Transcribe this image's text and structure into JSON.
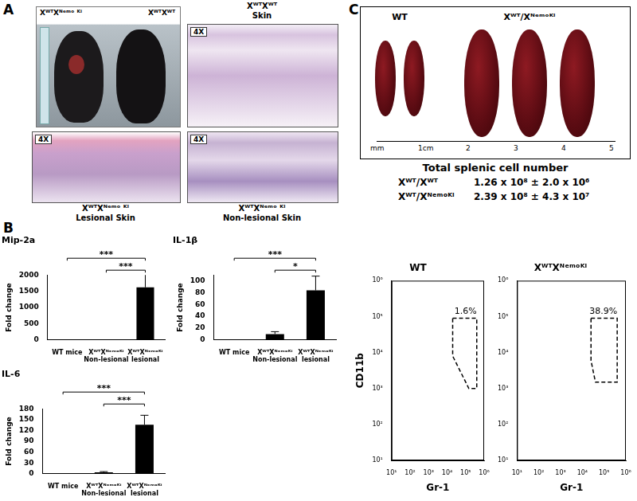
{
  "panel_a": {
    "label": "A",
    "photo_labels": [
      "XᵂᵀXᴺᵉᵐᵒ ᴷⁱ",
      "XᵂᵀXᵂᵀ"
    ],
    "images": [
      {
        "magnification": "4X",
        "caption": [
          "XᵂᵀXᵂᵀ",
          "Skin"
        ]
      },
      {
        "magnification": "4X",
        "caption": [
          "XᵂᵀXᴺᵉᵐᵒ ᴷⁱ",
          "Lesional Skin"
        ]
      },
      {
        "magnification": "4X",
        "caption": [
          "XᵂᵀXᴺᵉᵐᵒ ᴷⁱ",
          "Non-lesional Skin"
        ]
      }
    ]
  },
  "panel_b": {
    "label": "B"
  },
  "panel_c": {
    "label": "C",
    "spleen_groups": [
      {
        "label": "WT",
        "count": 2
      },
      {
        "label": "Xᵂᵀ/Xᴺᵉᵐᵒᴷⁱ",
        "count": 3
      }
    ],
    "ruler_labels": [
      "mm",
      "1cm",
      "2",
      "3",
      "4",
      "5"
    ],
    "table_title": "Total splenic cell number",
    "rows": [
      [
        "Xᵂᵀ/Xᵂᵀ",
        "1.26 x 10⁸ ± 2.0 x 10⁶"
      ],
      [
        "Xᵂᵀ/Xᴺᵉᵐᵒᴷⁱ",
        "2.39 x 10⁸ ± 4.3 x 10⁷"
      ]
    ]
  },
  "chart_data": [
    {
      "type": "bar",
      "title": "Mip-2a",
      "y_label": "Fold change",
      "categories": [
        "WT mice",
        "XᵂᵀXᴺᵉᵐᵒᴷⁱ Non-lesional",
        "XᵂᵀXᴺᵉᵐᵒᴷⁱ lesional"
      ],
      "values": [
        1,
        5,
        1620
      ],
      "errors": [
        0,
        2,
        400
      ],
      "color": "#000000",
      "ylim": [
        0,
        2000
      ],
      "yticks": [
        0,
        500,
        1000,
        1500,
        2000
      ],
      "grid": false,
      "significance": [
        {
          "pair": [
            0,
            2
          ],
          "label": "***"
        },
        {
          "pair": [
            1,
            2
          ],
          "label": "***"
        }
      ]
    },
    {
      "type": "bar",
      "title": "IL-1β",
      "y_label": "Fold change",
      "categories": [
        "WT mice",
        "XᵂᵀXᴺᵉᵐᵒᴷⁱ Non-lesional",
        "XᵂᵀXᴺᵉᵐᵒᴷⁱ lesional"
      ],
      "values": [
        1,
        10,
        84
      ],
      "errors": [
        0,
        4,
        24
      ],
      "color": "#000000",
      "ylim": [
        0,
        110
      ],
      "yticks": [
        0,
        20,
        40,
        60,
        80,
        100
      ],
      "grid": false,
      "significance": [
        {
          "pair": [
            0,
            2
          ],
          "label": "***"
        },
        {
          "pair": [
            1,
            2
          ],
          "label": "*"
        }
      ]
    },
    {
      "type": "bar",
      "title": "IL-6",
      "y_label": "Fold change",
      "categories": [
        "WT mice",
        "XᵂᵀXᴺᵉᵐᵒᴷⁱ Non-lesional",
        "XᵂᵀXᴺᵉᵐᵒᴷⁱ lesional"
      ],
      "values": [
        1,
        4,
        136
      ],
      "errors": [
        0,
        2,
        26
      ],
      "color": "#000000",
      "ylim": [
        0,
        180
      ],
      "yticks": [
        0,
        30,
        60,
        90,
        120,
        150,
        180
      ],
      "grid": false,
      "significance": [
        {
          "pair": [
            0,
            2
          ],
          "label": "***"
        },
        {
          "pair": [
            1,
            2
          ],
          "label": "***"
        }
      ]
    },
    {
      "type": "scatter",
      "title": "WT",
      "x_label": "Gr-1",
      "y_label": "CD11b",
      "log": true,
      "xlim": [
        10,
        1000000
      ],
      "ylim": [
        10,
        1000000
      ],
      "xticks": [
        {
          "value": 10,
          "label": "10¹"
        },
        {
          "value": 100,
          "label": "10²"
        },
        {
          "value": 1000,
          "label": "10³"
        },
        {
          "value": 10000,
          "label": "10⁴"
        },
        {
          "value": 100000,
          "label": "10⁵"
        },
        {
          "value": 1000000,
          "label": "10⁶"
        }
      ],
      "yticks": [
        {
          "value": 10,
          "label": "10¹"
        },
        {
          "value": 100,
          "label": "10²"
        },
        {
          "value": 1000,
          "label": "10³"
        },
        {
          "value": 10000,
          "label": "10⁴"
        },
        {
          "value": 100000,
          "label": "10⁵"
        },
        {
          "value": 1000000,
          "label": "10⁶"
        }
      ],
      "gate": {
        "x": [
          20000,
          400000,
          400000,
          150000,
          20000,
          20000
        ],
        "y": [
          90000,
          90000,
          1000,
          1000,
          8000,
          90000
        ]
      },
      "gate_label": "1.6%",
      "grid": false
    },
    {
      "type": "scatter",
      "title": "XᵂᵀXᴺᵉᵐᵒᴷⁱ",
      "x_label": "Gr-1",
      "log": true,
      "xlim": [
        10,
        1000000
      ],
      "ylim": [
        10,
        1000000
      ],
      "xticks": [
        {
          "value": 10,
          "label": "10¹"
        },
        {
          "value": 100,
          "label": "10²"
        },
        {
          "value": 1000,
          "label": "10³"
        },
        {
          "value": 10000,
          "label": "10⁴"
        },
        {
          "value": 100000,
          "label": "10⁵"
        },
        {
          "value": 1000000,
          "label": "10⁶"
        }
      ],
      "yticks": [
        {
          "value": 10,
          "label": "10¹"
        },
        {
          "value": 100,
          "label": "10²"
        },
        {
          "value": 1000,
          "label": "10³"
        },
        {
          "value": 10000,
          "label": "10⁴"
        },
        {
          "value": 100000,
          "label": "10⁵"
        },
        {
          "value": 1000000,
          "label": "10⁶"
        }
      ],
      "gate": {
        "x": [
          25000,
          400000,
          400000,
          40000,
          25000,
          25000
        ],
        "y": [
          90000,
          90000,
          1500,
          1500,
          6000,
          90000
        ]
      },
      "gate_label": "38.9%",
      "grid": false
    }
  ]
}
